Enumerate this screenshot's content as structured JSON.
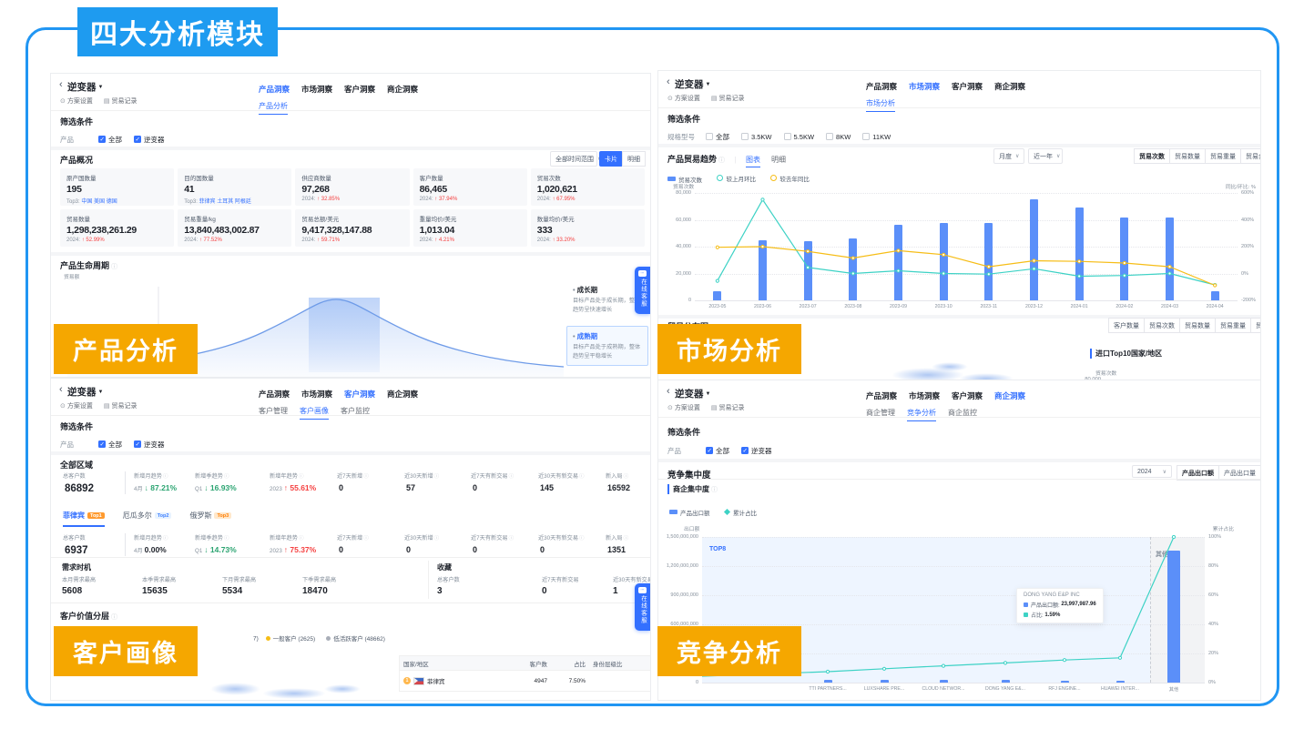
{
  "banner": {
    "title": "四大分析模块"
  },
  "labels": {
    "product": "产品分析",
    "market": "市场分析",
    "customer": "客户画像",
    "competition": "竞争分析"
  },
  "icons": {
    "back": "‹",
    "caret": "▼",
    "gear": "⊙",
    "doc": "▤",
    "chevron": "∨",
    "dots": "···",
    "sep": "|"
  },
  "common": {
    "entity": "逆变器",
    "scheme": "方案设置",
    "record": "贸易记录",
    "filter_title": "筛选条件",
    "service": "在线客服"
  },
  "product": {
    "tabs": [
      {
        "label": "产品洞察",
        "cls": "active"
      },
      {
        "label": "市场洞察",
        "cls": ""
      },
      {
        "label": "客户洞察",
        "cls": ""
      },
      {
        "label": "商企洞察",
        "cls": ""
      }
    ],
    "subtabs": [
      {
        "label": "产品分析",
        "cls": "active"
      }
    ],
    "filter_label": "产品",
    "filter_options": [
      {
        "label": "全部",
        "cls": "checked"
      },
      {
        "label": "逆变器",
        "cls": "checked"
      }
    ],
    "overview": {
      "title": "产品概况",
      "time_range": "全部时间范围",
      "views": [
        {
          "label": "卡片",
          "cls": "primary"
        },
        {
          "label": "明细",
          "cls": ""
        }
      ],
      "cards": [
        {
          "label": "原产国数量",
          "value": "195",
          "prefix": "Top3:",
          "extra": "中国 美国 德国",
          "cls": "links"
        },
        {
          "label": "目的国数量",
          "value": "41",
          "prefix": "Top3:",
          "extra": "菲律宾 土耳其 阿根廷",
          "cls": "links"
        },
        {
          "label": "供应商数量",
          "value": "97,268",
          "prefix": "2024:",
          "extra": "↑ 32.85%",
          "cls": "up"
        },
        {
          "label": "客户数量",
          "value": "86,465",
          "prefix": "2024:",
          "extra": "↑ 37.94%",
          "cls": "up"
        },
        {
          "label": "贸易次数",
          "value": "1,020,621",
          "prefix": "2024:",
          "extra": "↑ 67.95%",
          "cls": "up"
        },
        {
          "label": "贸易数量",
          "value": "1,298,238,261.29",
          "prefix": "2024:",
          "extra": "↑ 52.99%",
          "cls": "up"
        },
        {
          "label": "贸易重量/kg",
          "value": "13,840,483,002.87",
          "prefix": "2024:",
          "extra": "↑ 77.52%",
          "cls": "up"
        },
        {
          "label": "贸易总额/美元",
          "value": "9,417,328,147.88",
          "prefix": "2024:",
          "extra": "↑ 59.71%",
          "cls": "up"
        },
        {
          "label": "重量均价/美元",
          "value": "1,013.04",
          "prefix": "2024:",
          "extra": "↑ 4.21%",
          "cls": "up"
        },
        {
          "label": "数量均价/美元",
          "value": "333",
          "prefix": "2024:",
          "extra": "↑ 33.20%",
          "cls": "up"
        }
      ]
    },
    "lifecycle": {
      "title": "产品生命周期",
      "axis_label": "贸易额",
      "stages": [
        {
          "name": "成长期",
          "desc": "目标产品处于成长期，整体趋势呈快速增长",
          "cls": ""
        },
        {
          "name": "成熟期",
          "desc": "目标产品处于成熟期，整体趋势呈平稳增长",
          "cls": "active"
        }
      ]
    }
  },
  "market": {
    "tabs": [
      {
        "label": "产品洞察",
        "cls": ""
      },
      {
        "label": "市场洞察",
        "cls": "active"
      },
      {
        "label": "客户洞察",
        "cls": ""
      },
      {
        "label": "商企洞察",
        "cls": ""
      }
    ],
    "subtabs": [
      {
        "label": "市场分析",
        "cls": "active"
      }
    ],
    "filter_label": "规格型号",
    "filter_options": [
      {
        "label": "全部",
        "cls": ""
      },
      {
        "label": "3.5KW",
        "cls": ""
      },
      {
        "label": "5.5KW",
        "cls": ""
      },
      {
        "label": "8KW",
        "cls": ""
      },
      {
        "label": "11KW",
        "cls": ""
      }
    ],
    "trend": {
      "title": "产品贸易趋势",
      "views": [
        {
          "label": "图表",
          "cls": "active"
        },
        {
          "label": "明细",
          "cls": ""
        }
      ],
      "freq": "月度",
      "range": "近一年",
      "metrics": [
        {
          "label": "贸易次数",
          "cls": "sel"
        },
        {
          "label": "贸易数量",
          "cls": ""
        },
        {
          "label": "贸易重量",
          "cls": ""
        },
        {
          "label": "贸易金额",
          "cls": ""
        }
      ]
    },
    "distribution": {
      "title": "贸易分布图",
      "metrics": [
        {
          "label": "客户数量",
          "cls": ""
        },
        {
          "label": "贸易次数",
          "cls": ""
        },
        {
          "label": "贸易数量",
          "cls": ""
        },
        {
          "label": "贸易重量",
          "cls": ""
        },
        {
          "label": "贸易金额",
          "cls": ""
        }
      ],
      "sub_title": "进口Top10国家/地区",
      "sub_axis": "贸易次数",
      "sub_tick": "80,000"
    }
  },
  "customer": {
    "tabs": [
      {
        "label": "产品洞察",
        "cls": ""
      },
      {
        "label": "市场洞察",
        "cls": ""
      },
      {
        "label": "客户洞察",
        "cls": "active"
      },
      {
        "label": "商企洞察",
        "cls": ""
      }
    ],
    "subtabs": [
      {
        "label": "客户管理",
        "cls": ""
      },
      {
        "label": "客户画像",
        "cls": "active"
      },
      {
        "label": "客户监控",
        "cls": ""
      }
    ],
    "filter_label": "产品",
    "filter_options": [
      {
        "label": "全部",
        "cls": "checked"
      },
      {
        "label": "逆变器",
        "cls": "checked"
      }
    ],
    "region_title": "全部区域",
    "region_stats": [
      {
        "label": "总客户数",
        "icls": "",
        "prefix": "",
        "value": "86892",
        "vcls": "big"
      },
      {
        "label": "新增月趋势",
        "icls": "i",
        "prefix": "4月",
        "value": "↓ 87.21%",
        "vcls": "g"
      },
      {
        "label": "新增季趋势",
        "icls": "i",
        "prefix": "Q1",
        "value": "↓ 16.93%",
        "vcls": "g"
      },
      {
        "label": "新增年趋势",
        "icls": "i",
        "prefix": "2023",
        "value": "↑ 55.61%",
        "vcls": "r"
      },
      {
        "label": "近7天新增",
        "icls": "i",
        "prefix": "",
        "value": "0",
        "vcls": "num"
      },
      {
        "label": "近30天新增",
        "icls": "i",
        "prefix": "",
        "value": "57",
        "vcls": "num"
      },
      {
        "label": "近7天有新交易",
        "icls": "i",
        "prefix": "",
        "value": "0",
        "vcls": "num"
      },
      {
        "label": "近30天有新交易",
        "icls": "i",
        "prefix": "",
        "value": "145",
        "vcls": "num"
      },
      {
        "label": "新入局",
        "icls": "i",
        "prefix": "",
        "value": "16592",
        "vcls": "num"
      }
    ],
    "country_tabs": [
      {
        "name": "菲律宾",
        "badge": "Top1",
        "cls": "active",
        "bcls": "t1"
      },
      {
        "name": "厄瓜多尔",
        "badge": "Top2",
        "cls": "",
        "bcls": "t2"
      },
      {
        "name": "俄罗斯",
        "badge": "Top3",
        "cls": "",
        "bcls": "t3"
      }
    ],
    "country_stats": [
      {
        "label": "总客户数",
        "icls": "",
        "prefix": "",
        "value": "6937",
        "vcls": "big"
      },
      {
        "label": "新增月趋势",
        "icls": "i",
        "prefix": "4月",
        "value": "0.00%",
        "vcls": ""
      },
      {
        "label": "新增季趋势",
        "icls": "i",
        "prefix": "Q1",
        "value": "↓ 14.73%",
        "vcls": "g"
      },
      {
        "label": "新增年趋势",
        "icls": "i",
        "prefix": "2023",
        "value": "↑ 75.37%",
        "vcls": "r"
      },
      {
        "label": "近7天新增",
        "icls": "i",
        "prefix": "",
        "value": "0",
        "vcls": "num"
      },
      {
        "label": "近30天新增",
        "icls": "i",
        "prefix": "",
        "value": "0",
        "vcls": "num"
      },
      {
        "label": "近7天有新交易",
        "icls": "i",
        "prefix": "",
        "value": "0",
        "vcls": "num"
      },
      {
        "label": "近30天有新交易",
        "icls": "i",
        "prefix": "",
        "value": "0",
        "vcls": "num"
      },
      {
        "label": "新入局",
        "icls": "i",
        "prefix": "",
        "value": "1351",
        "vcls": "num"
      }
    ],
    "demand": {
      "title": "需求时机",
      "items": [
        {
          "label": "本月需求最高",
          "value": "5608"
        },
        {
          "label": "本季需求最高",
          "value": "15635"
        },
        {
          "label": "下月需求最高",
          "value": "5534"
        },
        {
          "label": "下季需求最高",
          "value": "18470"
        }
      ]
    },
    "favorites": {
      "title": "收藏",
      "items": [
        {
          "label": "总客户数",
          "value": "3"
        },
        {
          "label": "近7天有新交易",
          "value": "0"
        },
        {
          "label": "近30天有新交易",
          "value": "1"
        }
      ]
    },
    "tiers": {
      "title": "客户价值分层",
      "legend_cut": "7)",
      "legend": [
        {
          "label": "一般客户 (2625)",
          "dcls": "d-yellow"
        },
        {
          "label": "低活跃客户 (48662)",
          "dcls": "d-grey"
        }
      ],
      "table": {
        "headers": [
          "国家/地区",
          "客户数",
          "占比",
          "身份层级比"
        ],
        "rows": [
          {
            "country": "菲律宾",
            "customers": "4947",
            "ratio": "7.50%"
          }
        ]
      }
    }
  },
  "competition": {
    "tabs": [
      {
        "label": "产品洞察",
        "cls": ""
      },
      {
        "label": "市场洞察",
        "cls": ""
      },
      {
        "label": "客户洞察",
        "cls": ""
      },
      {
        "label": "商企洞察",
        "cls": "active"
      }
    ],
    "subtabs": [
      {
        "label": "商企管理",
        "cls": ""
      },
      {
        "label": "竞争分析",
        "cls": "active"
      },
      {
        "label": "商企监控",
        "cls": ""
      }
    ],
    "filter_label": "产品",
    "filter_options": [
      {
        "label": "全部",
        "cls": "checked"
      },
      {
        "label": "逆变器",
        "cls": "checked"
      }
    ],
    "section_title": "竞争集中度",
    "year": "2024",
    "metrics": [
      {
        "label": "产品出口额",
        "cls": "sel"
      },
      {
        "label": "产品出口量",
        "cls": ""
      }
    ],
    "chart_title": "商企集中度",
    "tooltip": {
      "title": "DONG YANG E&P INC",
      "rows": [
        {
          "label": "产品出口额:",
          "value": "23,997,987.96",
          "dcls": "sq-blue"
        },
        {
          "label": "占比:",
          "value": "1.59%",
          "dcls": "sq-cyan"
        }
      ]
    }
  },
  "chart_data": [
    {
      "panel": "market",
      "type": "bar+line",
      "title": "产品贸易趋势",
      "categories": [
        "2023-05",
        "2023-06",
        "2023-07",
        "2023-08",
        "2023-09",
        "2023-10",
        "2023-11",
        "2023-12",
        "2024-01",
        "2024-02",
        "2024-03",
        "2024-04"
      ],
      "series": [
        {
          "name": "贸易次数",
          "type": "bar",
          "axis": "left",
          "values": [
            7000,
            45000,
            44000,
            46000,
            56000,
            58000,
            57500,
            75500,
            69000,
            62000,
            61500,
            7000
          ]
        },
        {
          "name": "较上月环比",
          "type": "line",
          "axis": "right",
          "values": [
            -55,
            550,
            45,
            0,
            20,
            0,
            -5,
            35,
            -20,
            -15,
            0,
            -85
          ]
        },
        {
          "name": "较去年同比",
          "type": "line",
          "axis": "right",
          "values": [
            195,
            200,
            165,
            115,
            170,
            140,
            50,
            95,
            90,
            78,
            50,
            -88
          ]
        }
      ],
      "left_axis": {
        "label": "贸易次数",
        "min": 0,
        "max": 80000,
        "ticks": [
          "80,000",
          "60,000",
          "40,000",
          "20,000",
          "0"
        ]
      },
      "right_axis": {
        "label": "同比/环比: %",
        "min": -200,
        "max": 600,
        "ticks": [
          "600%",
          "400%",
          "200%",
          "0%",
          "-200%"
        ]
      },
      "colors": {
        "bar": "#5B8FF9",
        "line1": "#3DD2C5",
        "line2": "#F6BD16"
      }
    },
    {
      "panel": "competition",
      "type": "pareto",
      "title": "商企集中度",
      "categories": [
        "TTI PARTNERS...",
        "LUXSHARE PRE...",
        "CLOUD NETWOR...",
        "DONG YANG E&...",
        "RFJ ENGINE...",
        "HUAWEI INTER...",
        "其他"
      ],
      "series": [
        {
          "name": "产品出口额",
          "type": "bar",
          "values": [
            32000000,
            30000000,
            27000000,
            23997987.96,
            22000000,
            20000000,
            1360000000
          ]
        },
        {
          "name": "累计占比",
          "type": "line",
          "values": [
            7.5,
            9.5,
            11.5,
            13.5,
            15.5,
            17,
            100
          ]
        }
      ],
      "left_axis": {
        "label": "出口额",
        "max": 1500000000,
        "ticks": [
          "1,500,000,000",
          "1,200,000,000",
          "900,000,000",
          "600,000,000",
          "300,000,000",
          "0"
        ]
      },
      "right_axis": {
        "label": "累计占比",
        "max": 100,
        "ticks": [
          "100%",
          "80%",
          "60%",
          "40%",
          "20%",
          "0%"
        ]
      },
      "regions": {
        "top": "TOP8",
        "other": "其他"
      },
      "colors": {
        "bar": "#5B8FF9",
        "line": "#3DD2C5"
      }
    }
  ]
}
